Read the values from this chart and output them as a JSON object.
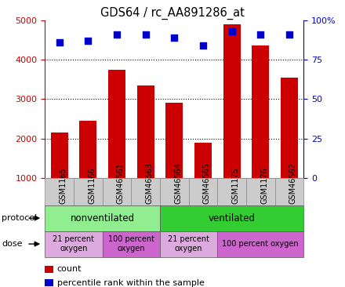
{
  "title": "GDS64 / rc_AA891286_at",
  "samples": [
    "GSM1165",
    "GSM1166",
    "GSM46561",
    "GSM46563",
    "GSM46564",
    "GSM46565",
    "GSM1175",
    "GSM1176",
    "GSM46562"
  ],
  "counts": [
    2150,
    2450,
    3750,
    3350,
    2900,
    1900,
    4900,
    4350,
    3550
  ],
  "percentile_ranks": [
    86,
    87,
    91,
    91,
    89,
    84,
    93,
    91,
    91
  ],
  "ylim_left": [
    1000,
    5000
  ],
  "ylim_right": [
    0,
    100
  ],
  "yticks_left": [
    1000,
    2000,
    3000,
    4000,
    5000
  ],
  "yticks_right": [
    0,
    25,
    50,
    75,
    100
  ],
  "bar_color": "#cc0000",
  "dot_color": "#0000cc",
  "protocol_groups": [
    {
      "label": "nonventilated",
      "start": 0,
      "end": 4,
      "color": "#90ee90"
    },
    {
      "label": "ventilated",
      "start": 4,
      "end": 9,
      "color": "#33cc33"
    }
  ],
  "dose_groups": [
    {
      "label": "21 percent\noxygen",
      "start": 0,
      "end": 2,
      "color": "#ddaadd"
    },
    {
      "label": "100 percent\noxygen",
      "start": 2,
      "end": 4,
      "color": "#cc66cc"
    },
    {
      "label": "21 percent\noxygen",
      "start": 4,
      "end": 6,
      "color": "#ddaadd"
    },
    {
      "label": "100 percent oxygen",
      "start": 6,
      "end": 9,
      "color": "#cc66cc"
    }
  ],
  "legend_items": [
    {
      "label": "count",
      "color": "#cc0000"
    },
    {
      "label": "percentile rank within the sample",
      "color": "#0000cc"
    }
  ],
  "sample_box_color": "#cccccc",
  "sample_box_edge": "#888888"
}
